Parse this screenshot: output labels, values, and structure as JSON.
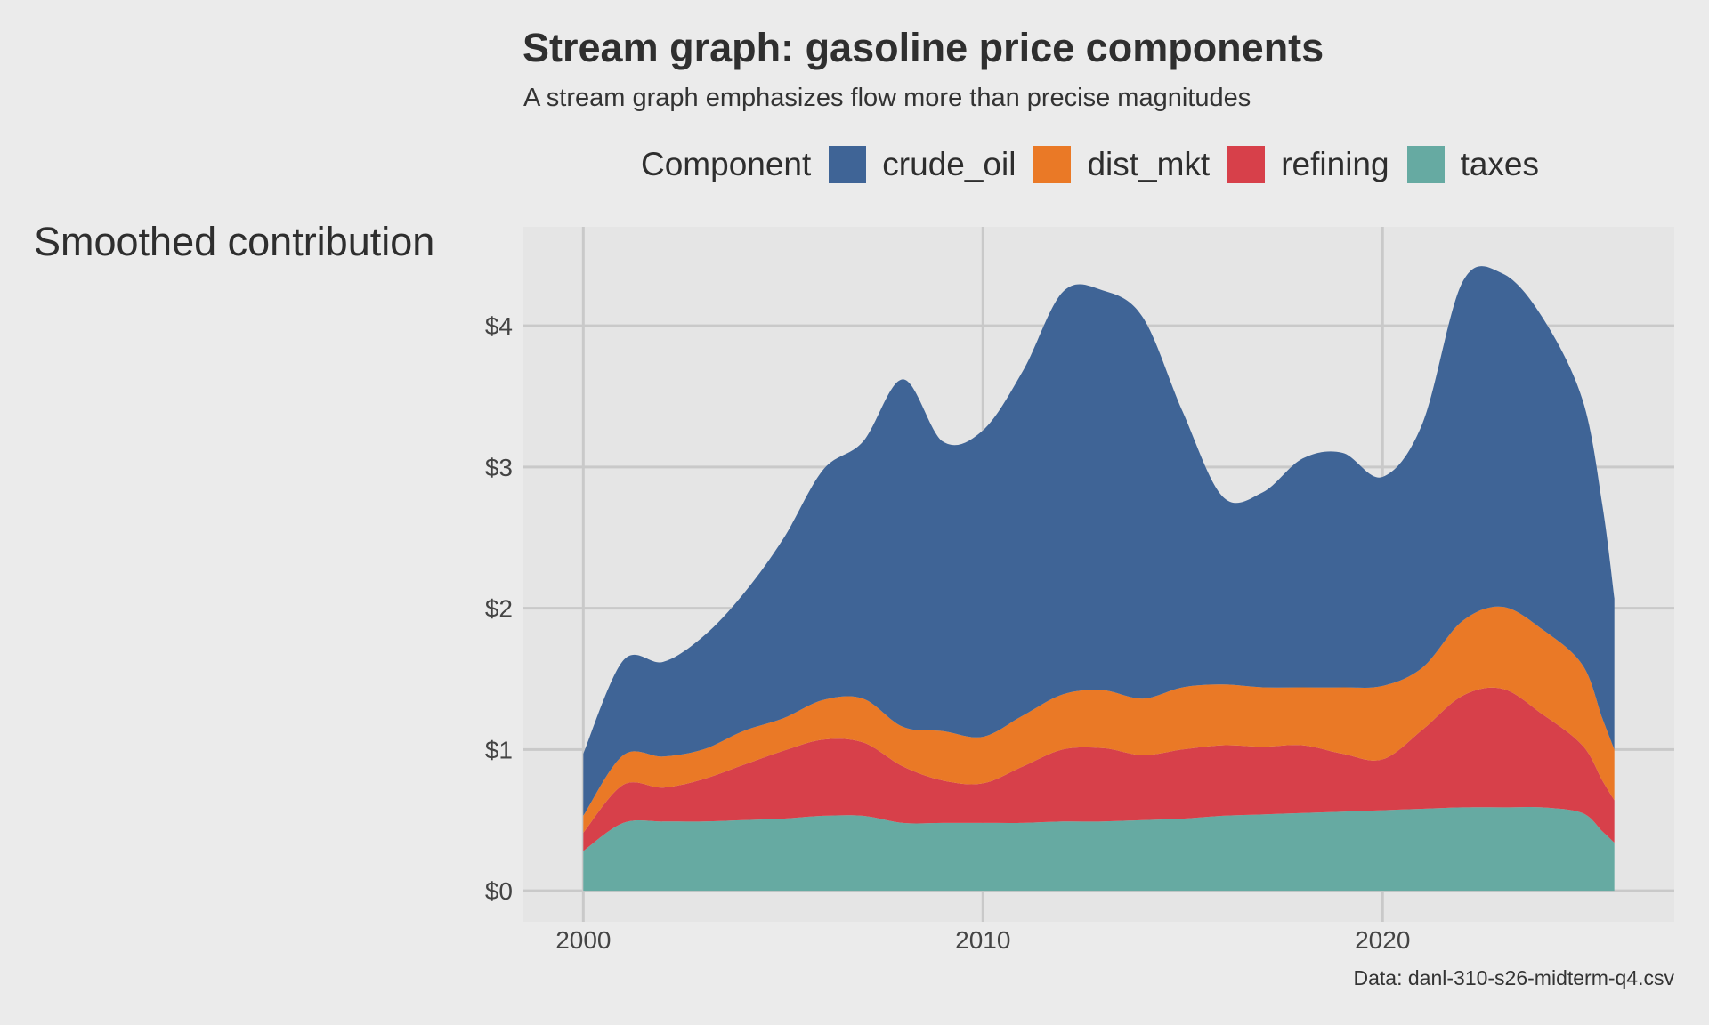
{
  "chart_data": {
    "type": "area",
    "stacked": true,
    "title": "Stream graph: gasoline price components",
    "subtitle": "A stream graph emphasizes flow more than precise magnitudes",
    "xlabel": "",
    "ylabel": "Smoothed contribution",
    "caption": "Data: danl-310-s26-midterm-q4.csv",
    "legend_title": "Component",
    "legend_position": "top",
    "xlim": [
      1998.5,
      2027.3
    ],
    "ylim": [
      -0.22,
      4.7
    ],
    "x_ticks": [
      2000,
      2010,
      2020
    ],
    "x_tick_labels": [
      "2000",
      "2010",
      "2020"
    ],
    "y_ticks": [
      0,
      1,
      2,
      3,
      4
    ],
    "y_tick_labels": [
      "$0",
      "$1",
      "$2",
      "$3",
      "$4"
    ],
    "grid": true,
    "x": [
      2000,
      2001,
      2002,
      2003,
      2004,
      2005,
      2006,
      2007,
      2008,
      2009,
      2010,
      2011,
      2012,
      2013,
      2014,
      2015,
      2016,
      2017,
      2018,
      2019,
      2020,
      2021,
      2022,
      2023,
      2024,
      2025,
      2025.5,
      2025.8
    ],
    "series": [
      {
        "name": "taxes",
        "color": "#66aaa2",
        "values": [
          0.28,
          0.48,
          0.49,
          0.49,
          0.5,
          0.51,
          0.53,
          0.53,
          0.48,
          0.48,
          0.48,
          0.48,
          0.49,
          0.49,
          0.5,
          0.51,
          0.53,
          0.54,
          0.55,
          0.56,
          0.57,
          0.58,
          0.59,
          0.59,
          0.59,
          0.55,
          0.42,
          0.34
        ]
      },
      {
        "name": "refining",
        "color": "#d7404a",
        "values": [
          0.13,
          0.27,
          0.24,
          0.3,
          0.39,
          0.48,
          0.54,
          0.52,
          0.4,
          0.3,
          0.28,
          0.4,
          0.51,
          0.52,
          0.46,
          0.49,
          0.5,
          0.48,
          0.48,
          0.41,
          0.36,
          0.56,
          0.79,
          0.84,
          0.66,
          0.48,
          0.36,
          0.3
        ]
      },
      {
        "name": "dist_mkt",
        "color": "#ea7926",
        "values": [
          0.12,
          0.21,
          0.22,
          0.21,
          0.24,
          0.23,
          0.28,
          0.31,
          0.28,
          0.35,
          0.33,
          0.36,
          0.39,
          0.41,
          0.4,
          0.44,
          0.43,
          0.42,
          0.41,
          0.47,
          0.52,
          0.44,
          0.53,
          0.58,
          0.6,
          0.57,
          0.44,
          0.36
        ]
      },
      {
        "name": "crude_oil",
        "color": "#3f6496",
        "values": [
          0.44,
          0.67,
          0.67,
          0.8,
          0.97,
          1.27,
          1.63,
          1.82,
          2.46,
          2.05,
          2.17,
          2.44,
          2.85,
          2.83,
          2.7,
          1.95,
          1.33,
          1.38,
          1.62,
          1.66,
          1.48,
          1.73,
          2.4,
          2.36,
          2.21,
          1.88,
          1.51,
          1.07
        ]
      }
    ]
  }
}
